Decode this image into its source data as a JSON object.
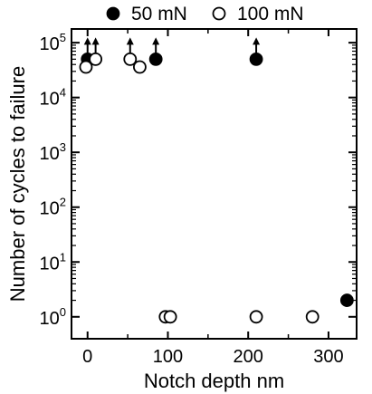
{
  "chart_data": {
    "type": "scatter",
    "title": "",
    "xlabel": "Notch depth   nm",
    "ylabel": "Number of cycles to failure",
    "xlim": [
      -20,
      335
    ],
    "ylim_log10": [
      -0.4,
      5.25
    ],
    "y_scale": "log",
    "grid": false,
    "legend_position": "top",
    "x_ticks": [
      {
        "value": 0,
        "label": "0"
      },
      {
        "value": 100,
        "label": "100"
      },
      {
        "value": 200,
        "label": "200"
      },
      {
        "value": 300,
        "label": "300"
      }
    ],
    "y_ticks": [
      {
        "exp": 0,
        "base": "10",
        "sup": "0"
      },
      {
        "exp": 1,
        "base": "10",
        "sup": "1"
      },
      {
        "exp": 2,
        "base": "10",
        "sup": "2"
      },
      {
        "exp": 3,
        "base": "10",
        "sup": "3"
      },
      {
        "exp": 4,
        "base": "10",
        "sup": "4"
      },
      {
        "exp": 5,
        "base": "10",
        "sup": "5"
      }
    ],
    "series": [
      {
        "name": "50 mN",
        "marker": "filled-circle",
        "points": [
          {
            "x": 0,
            "y": 50000,
            "runout": true
          },
          {
            "x": 85,
            "y": 50000,
            "runout": true
          },
          {
            "x": 210,
            "y": 50000,
            "runout": true
          },
          {
            "x": 323,
            "y": 2
          }
        ]
      },
      {
        "name": "100 mN",
        "marker": "open-circle",
        "points": [
          {
            "x": -2,
            "y": 36000
          },
          {
            "x": 10,
            "y": 50000,
            "runout": true
          },
          {
            "x": 53,
            "y": 50000,
            "runout": true
          },
          {
            "x": 65,
            "y": 36000
          },
          {
            "x": 97,
            "y": 1
          },
          {
            "x": 103,
            "y": 1
          },
          {
            "x": 210,
            "y": 1
          },
          {
            "x": 280,
            "y": 1
          }
        ]
      }
    ]
  }
}
